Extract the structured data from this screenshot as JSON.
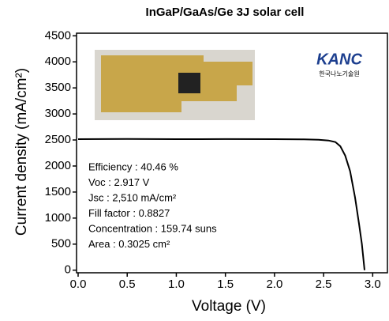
{
  "chart_data": {
    "type": "line",
    "title": "InGaP/GaAs/Ge  3J solar cell",
    "x_label": "Voltage (V)",
    "y_label": "Current density (mA/cm²)",
    "x": [
      0,
      0.5,
      1.0,
      1.5,
      2.0,
      2.3,
      2.45,
      2.55,
      2.62,
      2.67,
      2.72,
      2.77,
      2.82,
      2.86,
      2.89,
      2.917
    ],
    "values": [
      2515,
      2520,
      2515,
      2518,
      2515,
      2512,
      2505,
      2490,
      2460,
      2380,
      2200,
      1900,
      1400,
      900,
      500,
      0
    ],
    "color": "#000000",
    "xlim": [
      0,
      3.15
    ],
    "ylim": [
      -50,
      4550
    ],
    "xticks": [
      {
        "value": 0,
        "label": "0.0"
      },
      0.5,
      {
        "value": 1,
        "label": "1.0"
      },
      1.5,
      {
        "value": 2,
        "label": "2.0"
      },
      2.5,
      {
        "value": 3,
        "label": "3.0"
      }
    ],
    "yticks": [
      0,
      500,
      1000,
      1500,
      2000,
      2500,
      3000,
      3500,
      4000,
      4500
    ],
    "grid": false,
    "annotations": [
      "Efficiency : 40.46 %",
      "Voc : 2.917 V",
      "Jsc : 2,510 mA/cm²",
      "Fill factor : 0.8827",
      "Concentration : 159.74 suns",
      "Area : 0.3025 cm²"
    ],
    "logo": {
      "text": "KANC",
      "subtitle": "한국나노기술원"
    }
  }
}
